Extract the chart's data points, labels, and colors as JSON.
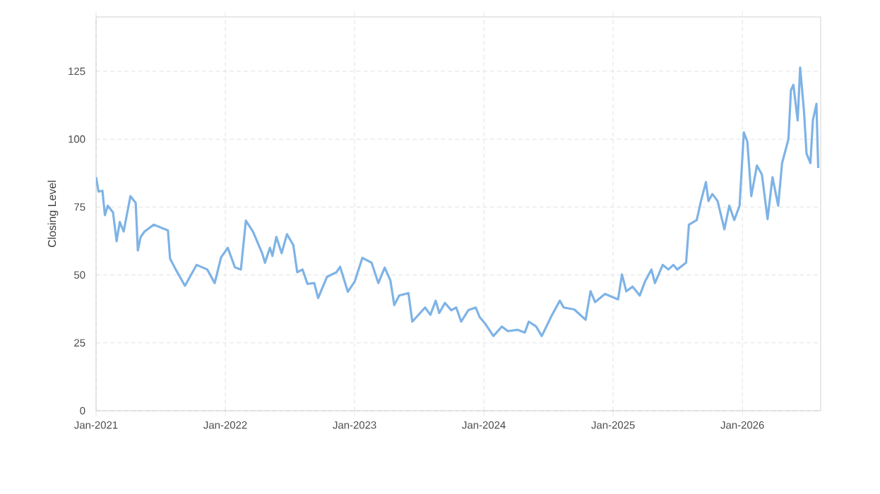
{
  "chart_data": {
    "type": "line",
    "ylabel": "Closing Level",
    "xlim": [
      "2021-01-01",
      "2026-08-10"
    ],
    "ylim": [
      0,
      145
    ],
    "xticks": [
      {
        "value": "2021-01",
        "label": "Jan-2021"
      },
      {
        "value": "2022-01",
        "label": "Jan-2022"
      },
      {
        "value": "2023-01",
        "label": "Jan-2023"
      },
      {
        "value": "2024-01",
        "label": "Jan-2024"
      },
      {
        "value": "2025-01",
        "label": "Jan-2025"
      },
      {
        "value": "2026-01",
        "label": "Jan-2026"
      }
    ],
    "yticks": [
      0,
      25,
      50,
      75,
      100,
      125
    ],
    "grid": true,
    "marker": "none",
    "line_style": "solid",
    "series": [
      {
        "color": "#7eb3e6",
        "x": [
          "2021-01-01",
          "2021-01-08",
          "2021-01-19",
          "2021-01-26",
          "2021-02-03",
          "2021-02-18",
          "2021-02-28",
          "2021-03-09",
          "2021-03-20",
          "2021-04-08",
          "2021-04-23",
          "2021-04-29",
          "2021-05-07",
          "2021-05-18",
          "2021-06-13",
          "2021-07-23",
          "2021-07-29",
          "2021-08-14",
          "2021-09-09",
          "2021-10-12",
          "2021-11-11",
          "2021-12-02",
          "2021-12-20",
          "2022-01-08",
          "2022-01-28",
          "2022-02-14",
          "2022-02-28",
          "2022-03-20",
          "2022-04-15",
          "2022-04-23",
          "2022-05-07",
          "2022-05-14",
          "2022-05-25",
          "2022-06-09",
          "2022-06-24",
          "2022-07-12",
          "2022-07-23",
          "2022-08-07",
          "2022-08-21",
          "2022-09-09",
          "2022-09-20",
          "2022-10-15",
          "2022-11-11",
          "2022-11-21",
          "2022-12-13",
          "2023-01-01",
          "2023-01-23",
          "2023-02-18",
          "2023-03-09",
          "2023-03-27",
          "2023-04-12",
          "2023-04-23",
          "2023-05-07",
          "2023-06-02",
          "2023-06-13",
          "2023-07-19",
          "2023-08-03",
          "2023-08-18",
          "2023-08-28",
          "2023-09-13",
          "2023-10-01",
          "2023-10-15",
          "2023-10-29",
          "2023-11-18",
          "2023-12-09",
          "2023-12-20",
          "2024-01-05",
          "2024-01-28",
          "2024-02-21",
          "2024-03-09",
          "2024-04-05",
          "2024-04-26",
          "2024-05-07",
          "2024-05-28",
          "2024-06-13",
          "2024-07-12",
          "2024-08-03",
          "2024-08-14",
          "2024-09-13",
          "2024-10-15",
          "2024-10-29",
          "2024-11-11",
          "2024-12-09",
          "2025-01-15",
          "2025-01-26",
          "2025-02-07",
          "2025-02-25",
          "2025-03-17",
          "2025-04-01",
          "2025-04-19",
          "2025-04-29",
          "2025-05-21",
          "2025-06-06",
          "2025-06-20",
          "2025-07-01",
          "2025-07-26",
          "2025-08-03",
          "2025-08-25",
          "2025-09-06",
          "2025-09-20",
          "2025-09-27",
          "2025-10-08",
          "2025-10-23",
          "2025-11-11",
          "2025-11-25",
          "2025-12-09",
          "2025-12-24",
          "2026-01-05",
          "2026-01-15",
          "2026-01-26",
          "2026-02-11",
          "2026-02-25",
          "2026-03-13",
          "2026-03-27",
          "2026-04-12",
          "2026-04-23",
          "2026-05-11",
          "2026-05-18",
          "2026-05-25",
          "2026-06-06",
          "2026-06-13",
          "2026-06-24",
          "2026-07-01",
          "2026-07-12",
          "2026-07-19",
          "2026-07-29",
          "2026-08-03"
        ],
        "values": [
          86,
          80.7,
          81,
          72,
          75.5,
          73,
          62.4,
          69.5,
          66,
          79,
          76.5,
          59,
          64,
          66,
          68.5,
          66.4,
          56,
          52,
          46,
          53.7,
          52,
          47,
          56.5,
          60,
          52.8,
          52,
          70,
          66,
          58,
          54.5,
          60,
          57,
          64,
          58,
          65,
          61,
          51,
          52,
          46.7,
          47,
          41.5,
          49.3,
          51,
          53,
          43.8,
          47.5,
          56.3,
          54.5,
          47,
          52.7,
          48,
          38.9,
          42.4,
          43.3,
          32.8,
          38,
          35.3,
          40.5,
          36,
          39.7,
          37,
          38,
          32.8,
          37,
          38,
          34.5,
          32,
          27.5,
          31,
          29.3,
          29.8,
          28.8,
          32.8,
          31,
          27.5,
          35.3,
          40.5,
          38,
          37.3,
          33.5,
          44,
          40,
          43,
          41,
          50.2,
          44,
          45.7,
          42.4,
          47.6,
          52,
          47,
          53.7,
          52,
          53.7,
          52,
          54.5,
          68.5,
          70.2,
          77.2,
          84.2,
          77.2,
          79.8,
          77.2,
          66.8,
          75.5,
          70.2,
          75.5,
          102.5,
          99,
          79,
          90.3,
          87,
          70.6,
          86,
          75.5,
          91.2,
          100,
          118,
          120,
          106.9,
          126.4,
          110,
          94.7,
          91.2,
          107,
          113,
          89.4
        ]
      }
    ]
  }
}
